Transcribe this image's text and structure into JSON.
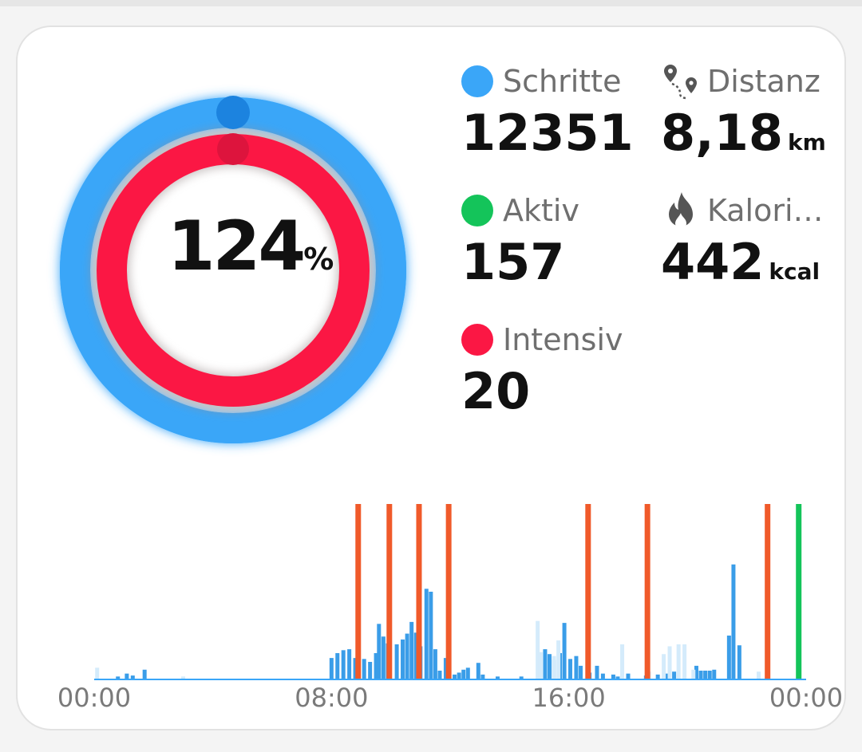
{
  "ring": {
    "percent_value": "124",
    "percent_unit": "%",
    "outer_color": "#3aa6f8",
    "inner_color": "#fb1744",
    "outer_progress": 1.0,
    "inner_progress": 1.0
  },
  "metrics": {
    "steps": {
      "label": "Schritte",
      "value": "12351",
      "color": "#3aa6f8"
    },
    "distance": {
      "label": "Distanz",
      "value": "8,18",
      "unit": "km",
      "icon": "route-pin-icon"
    },
    "active": {
      "label": "Aktiv",
      "value": "157",
      "color": "#14c45a"
    },
    "calories": {
      "label": "Kalori…",
      "value": "442",
      "unit": "kcal",
      "icon": "flame-icon"
    },
    "intensive": {
      "label": "Intensiv",
      "value": "20",
      "color": "#fb1744"
    }
  },
  "chart_data": {
    "type": "bar",
    "x_labels": [
      "00:00",
      "08:00",
      "16:00",
      "00:00"
    ],
    "x_range_hours": [
      0,
      24
    ],
    "series": [
      {
        "color": "#3a9de8",
        "bars": [
          [
            0.8,
            3
          ],
          [
            1.1,
            6
          ],
          [
            1.3,
            4
          ],
          [
            1.7,
            10
          ],
          [
            8.0,
            22
          ],
          [
            8.2,
            27
          ],
          [
            8.4,
            30
          ],
          [
            8.6,
            31
          ],
          [
            8.8,
            22
          ],
          [
            9.1,
            21
          ],
          [
            9.3,
            18
          ],
          [
            9.5,
            27
          ],
          [
            9.6,
            57
          ],
          [
            9.75,
            44
          ],
          [
            9.9,
            37
          ],
          [
            10.2,
            36
          ],
          [
            10.4,
            41
          ],
          [
            10.55,
            47
          ],
          [
            10.7,
            59
          ],
          [
            10.85,
            48
          ],
          [
            11.0,
            34
          ],
          [
            11.2,
            93
          ],
          [
            11.35,
            90
          ],
          [
            11.5,
            31
          ],
          [
            11.65,
            9
          ],
          [
            11.85,
            22
          ],
          [
            12.15,
            5
          ],
          [
            12.3,
            7
          ],
          [
            12.45,
            10
          ],
          [
            12.6,
            12
          ],
          [
            12.95,
            17
          ],
          [
            13.1,
            5
          ],
          [
            13.6,
            3
          ],
          [
            14.4,
            3
          ],
          [
            15.0,
            23
          ],
          [
            15.2,
            31
          ],
          [
            15.35,
            26
          ],
          [
            15.5,
            20
          ],
          [
            15.7,
            27
          ],
          [
            15.85,
            58
          ],
          [
            16.05,
            21
          ],
          [
            16.25,
            24
          ],
          [
            16.4,
            14
          ],
          [
            16.7,
            7
          ],
          [
            16.95,
            14
          ],
          [
            17.15,
            6
          ],
          [
            17.5,
            5
          ],
          [
            17.65,
            3
          ],
          [
            18.0,
            6
          ],
          [
            18.6,
            4
          ],
          [
            19.0,
            5
          ],
          [
            19.3,
            6
          ],
          [
            19.55,
            8
          ],
          [
            20.3,
            14
          ],
          [
            20.45,
            9
          ],
          [
            20.6,
            9
          ],
          [
            20.75,
            9
          ],
          [
            20.9,
            10
          ],
          [
            21.4,
            45
          ],
          [
            21.55,
            118
          ],
          [
            21.75,
            35
          ]
        ]
      },
      {
        "color": "#d4ebfb",
        "bars": [
          [
            0.1,
            12
          ],
          [
            3.0,
            3
          ],
          [
            14.95,
            60
          ],
          [
            15.05,
            28
          ],
          [
            15.5,
            24
          ],
          [
            15.65,
            40
          ],
          [
            17.8,
            36
          ],
          [
            18.7,
            8
          ],
          [
            19.2,
            26
          ],
          [
            19.4,
            34
          ],
          [
            19.7,
            36
          ],
          [
            19.9,
            36
          ],
          [
            22.4,
            8
          ],
          [
            20.2,
            10
          ]
        ]
      },
      {
        "color": "#f05a2a",
        "bars": [
          [
            8.9,
            180
          ],
          [
            9.95,
            180
          ],
          [
            10.95,
            180
          ],
          [
            11.95,
            180
          ],
          [
            16.65,
            180
          ],
          [
            18.65,
            180
          ],
          [
            22.7,
            180
          ]
        ]
      },
      {
        "color": "#14c45a",
        "bars": [
          [
            23.75,
            180
          ]
        ]
      }
    ]
  }
}
